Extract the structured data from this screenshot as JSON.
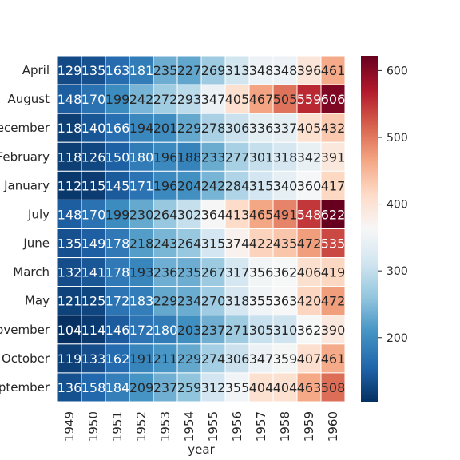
{
  "chart_data": {
    "type": "heatmap",
    "title": "",
    "xlabel": "year",
    "ylabel": "",
    "x": [
      "1949",
      "1950",
      "1951",
      "1952",
      "1953",
      "1954",
      "1955",
      "1956",
      "1957",
      "1958",
      "1959",
      "1960"
    ],
    "y": [
      "April",
      "August",
      "December",
      "February",
      "January",
      "July",
      "June",
      "March",
      "May",
      "November",
      "October",
      "September"
    ],
    "values": [
      [
        129,
        135,
        163,
        181,
        235,
        227,
        269,
        313,
        348,
        348,
        396,
        461
      ],
      [
        148,
        170,
        199,
        242,
        272,
        293,
        347,
        405,
        467,
        505,
        559,
        606
      ],
      [
        118,
        140,
        166,
        194,
        201,
        229,
        278,
        306,
        336,
        337,
        405,
        432
      ],
      [
        118,
        126,
        150,
        180,
        196,
        188,
        233,
        277,
        301,
        318,
        342,
        391
      ],
      [
        112,
        115,
        145,
        171,
        196,
        204,
        242,
        284,
        315,
        340,
        360,
        417
      ],
      [
        148,
        170,
        199,
        230,
        264,
        302,
        364,
        413,
        465,
        491,
        548,
        622
      ],
      [
        135,
        149,
        178,
        218,
        243,
        264,
        315,
        374,
        422,
        435,
        472,
        535
      ],
      [
        132,
        141,
        178,
        193,
        236,
        235,
        267,
        317,
        356,
        362,
        406,
        419
      ],
      [
        121,
        125,
        172,
        183,
        229,
        234,
        270,
        318,
        355,
        363,
        420,
        472
      ],
      [
        104,
        114,
        146,
        172,
        180,
        203,
        237,
        271,
        305,
        310,
        362,
        390
      ],
      [
        119,
        133,
        162,
        191,
        211,
        229,
        274,
        306,
        347,
        359,
        407,
        461
      ],
      [
        136,
        158,
        184,
        209,
        237,
        259,
        312,
        355,
        404,
        404,
        463,
        508
      ]
    ],
    "colormap": "RdBu_r",
    "vmin": 104,
    "vmax": 622,
    "colorbar_ticks": [
      200,
      300,
      400,
      500,
      600
    ],
    "annotations": true,
    "grid": false
  }
}
